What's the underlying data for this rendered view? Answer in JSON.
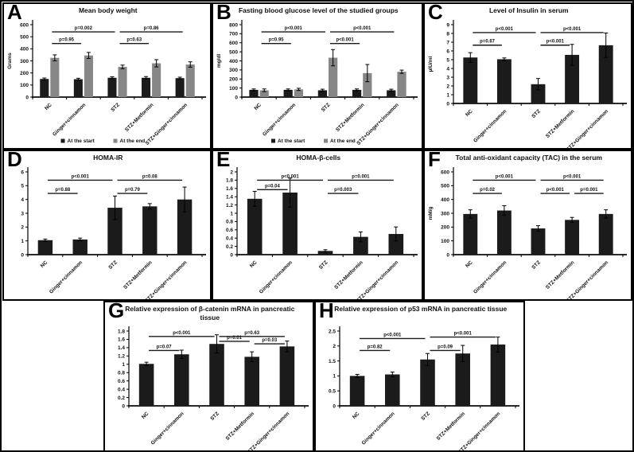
{
  "figure": {
    "background": "#ffffff",
    "border_color": "#000000",
    "bar_color": "#1b1b1b",
    "secondary_bar_color": "#878787",
    "legend": {
      "items": [
        {
          "label": "At the start",
          "color": "#1b1b1b"
        },
        {
          "label": "At the end",
          "color": "#878787"
        }
      ]
    }
  },
  "chart_data": [
    {
      "panel_letter": "A",
      "type": "bar",
      "title": "Mean body weight",
      "ylabel": "Grams",
      "ylim": [
        0,
        600
      ],
      "yticks": [
        0,
        100,
        200,
        300,
        400,
        500,
        600
      ],
      "grid": false,
      "legend": true,
      "legend_position": "bottom",
      "categories": [
        "NC",
        "Ginger+cinnamon",
        "STZ",
        "STZ+Metformin",
        "STZ+Ginger+cinnamon"
      ],
      "series": [
        {
          "name": "At the start",
          "color": "#1b1b1b",
          "values": [
            150,
            148,
            160,
            160,
            157
          ],
          "errors": [
            8,
            8,
            8,
            10,
            8
          ]
        },
        {
          "name": "At the end",
          "color": "#878787",
          "values": [
            325,
            345,
            250,
            280,
            270
          ],
          "errors": [
            25,
            25,
            15,
            30,
            22
          ]
        }
      ],
      "pvalues": [
        {
          "label": "p=0.002",
          "from": 0,
          "to": 2,
          "level": 1
        },
        {
          "label": "p=0.86",
          "from": 2,
          "to": 4,
          "level": 1
        },
        {
          "label": "p=0.95",
          "from": 0,
          "to": 1,
          "level": 2
        },
        {
          "label": "p=0.63",
          "from": 2,
          "to": 3,
          "level": 2
        }
      ]
    },
    {
      "panel_letter": "B",
      "type": "bar",
      "title": "Fasting blood glucose level of the studied groups",
      "ylabel": "mg/dl",
      "ylim": [
        0,
        800
      ],
      "yticks": [
        0,
        100,
        200,
        300,
        400,
        500,
        600,
        700,
        800
      ],
      "grid": false,
      "legend": true,
      "legend_position": "bottom",
      "categories": [
        "NC",
        "Ginger+cinnamon",
        "STZ",
        "STZ+Metformin",
        "STZ+Ginger+cinnamon"
      ],
      "series": [
        {
          "name": "At the start",
          "color": "#1b1b1b",
          "values": [
            80,
            80,
            75,
            80,
            75
          ],
          "errors": [
            10,
            10,
            12,
            10,
            12
          ]
        },
        {
          "name": "At the end",
          "color": "#878787",
          "values": [
            75,
            85,
            435,
            265,
            280
          ],
          "errors": [
            15,
            12,
            90,
            95,
            18
          ]
        }
      ],
      "pvalues": [
        {
          "label": "p<0.001",
          "from": 0,
          "to": 2,
          "level": 1
        },
        {
          "label": "p<0.001",
          "from": 2,
          "to": 4,
          "level": 1
        },
        {
          "label": "p=0.95",
          "from": 0,
          "to": 1,
          "level": 2
        },
        {
          "label": "p<0.001",
          "from": 2,
          "to": 3,
          "level": 2
        }
      ]
    },
    {
      "panel_letter": "C",
      "type": "bar",
      "title": "Level of Insulin in serum",
      "ylabel": "µIU/ml",
      "ylim": [
        0,
        9
      ],
      "yticks": [
        0,
        1,
        2,
        3,
        4,
        5,
        6,
        7,
        8,
        9
      ],
      "grid": false,
      "legend": false,
      "categories": [
        "NC",
        "Ginger+cinnamon",
        "STZ",
        "STZ+Metformin",
        "STZ+Ginger+cinnamon"
      ],
      "series": [
        {
          "name": "Insulin",
          "color": "#1b1b1b",
          "values": [
            5.25,
            5.05,
            2.2,
            5.55,
            6.65
          ],
          "errors": [
            0.55,
            0.15,
            0.65,
            1.2,
            1.4
          ]
        }
      ],
      "pvalues": [
        {
          "label": "p<0.001",
          "from": 0,
          "to": 2,
          "level": 1
        },
        {
          "label": "p<0.001",
          "from": 2,
          "to": 4,
          "level": 1
        },
        {
          "label": "p=0.67",
          "from": 0,
          "to": 1,
          "level": 2
        },
        {
          "label": "p<0.001",
          "from": 2,
          "to": 3,
          "level": 2
        }
      ]
    },
    {
      "panel_letter": "D",
      "type": "bar",
      "title": "HOMA-IR",
      "ylabel": "",
      "ylim": [
        0,
        6
      ],
      "yticks": [
        0,
        1,
        2,
        3,
        4,
        5,
        6
      ],
      "grid": false,
      "legend": false,
      "categories": [
        "NC",
        "Ginger+cinnamon",
        "STZ",
        "STZ+Metformin",
        "STZ+Ginger+cinnamon"
      ],
      "series": [
        {
          "name": "HOMA-IR",
          "color": "#1b1b1b",
          "values": [
            1.05,
            1.1,
            3.4,
            3.5,
            4.0
          ],
          "errors": [
            0.08,
            0.1,
            0.85,
            0.2,
            0.9
          ]
        }
      ],
      "pvalues": [
        {
          "label": "p<0.001",
          "from": 0,
          "to": 2,
          "level": 1
        },
        {
          "label": "p=0.08",
          "from": 2,
          "to": 4,
          "level": 1
        },
        {
          "label": "p=0.88",
          "from": 0,
          "to": 1,
          "level": 2
        },
        {
          "label": "p=0.79",
          "from": 2,
          "to": 3,
          "level": 2
        }
      ]
    },
    {
      "panel_letter": "E",
      "type": "bar",
      "title": "HOMA-β-cells",
      "ylabel": "",
      "ylim": [
        0,
        2
      ],
      "yticks": [
        0,
        0.2,
        0.4,
        0.6,
        0.8,
        1,
        1.2,
        1.4,
        1.6,
        1.8,
        2
      ],
      "grid": false,
      "legend": false,
      "categories": [
        "NC",
        "Ginger+cinnamon",
        "STZ",
        "STZ+Metformin",
        "STZ+Ginger+cinnamon"
      ],
      "series": [
        {
          "name": "HOMA-β-cells",
          "color": "#1b1b1b",
          "values": [
            1.35,
            1.5,
            0.09,
            0.43,
            0.5
          ],
          "errors": [
            0.18,
            0.35,
            0.03,
            0.12,
            0.17
          ]
        }
      ],
      "pvalues": [
        {
          "label": "p<0.001",
          "from": 0,
          "to": 2,
          "level": 1
        },
        {
          "label": "p=0.001",
          "from": 2,
          "to": 4,
          "level": 1
        },
        {
          "label": "p=0.04",
          "from": 0,
          "to": 1,
          "level": 2
        },
        {
          "label": "p=0.003",
          "from": 2,
          "to": 3,
          "level": 2
        }
      ]
    },
    {
      "panel_letter": "F",
      "type": "bar",
      "title": "Total anti-oxidant capacity (TAC) in the serum",
      "ylabel": "mM/g",
      "ylim": [
        0,
        600
      ],
      "yticks": [
        0,
        100,
        200,
        300,
        400,
        500,
        600
      ],
      "grid": false,
      "legend": false,
      "categories": [
        "NC",
        "Ginger+cinnamon",
        "STZ",
        "STZ+Metformin",
        "STZ+Ginger+cinnamon"
      ],
      "series": [
        {
          "name": "TAC",
          "color": "#1b1b1b",
          "values": [
            295,
            320,
            190,
            252,
            295
          ],
          "errors": [
            30,
            35,
            20,
            18,
            30
          ]
        }
      ],
      "pvalues": [
        {
          "label": "p<0.001",
          "from": 0,
          "to": 2,
          "level": 1
        },
        {
          "label": "p<0.001",
          "from": 2,
          "to": 4,
          "level": 1
        },
        {
          "label": "p=0.02",
          "from": 0,
          "to": 1,
          "level": 2
        },
        {
          "label": "p<0.001",
          "from": 2,
          "to": 3,
          "level": 2
        },
        {
          "label": "p=0.001",
          "from": 3,
          "to": 4,
          "level": 2
        }
      ]
    },
    {
      "panel_letter": "G",
      "type": "bar",
      "title": "Relative expression of β-catenin mRNA in pancreatic tissue",
      "ylabel": "",
      "ylim": [
        0,
        1.8
      ],
      "yticks": [
        0,
        0.2,
        0.4,
        0.6,
        0.8,
        1,
        1.2,
        1.4,
        1.6,
        1.8
      ],
      "grid": false,
      "legend": false,
      "categories": [
        "NC",
        "Ginger+cinnamon",
        "STZ",
        "STZ+Metformin",
        "STZ+Ginger+cinnamon"
      ],
      "series": [
        {
          "name": "β-catenin mRNA",
          "color": "#1b1b1b",
          "values": [
            1.01,
            1.24,
            1.49,
            1.18,
            1.43
          ],
          "errors": [
            0.04,
            0.1,
            0.22,
            0.12,
            0.13
          ]
        }
      ],
      "pvalues": [
        {
          "label": "p<0.001",
          "from": 0,
          "to": 2,
          "level": 1
        },
        {
          "label": "p=0.63",
          "from": 2,
          "to": 4,
          "level": 1
        },
        {
          "label": "p=0.07",
          "from": 0,
          "to": 1,
          "level": 2
        },
        {
          "label": "p=0.01",
          "from": 2,
          "to": 3,
          "level": 2
        },
        {
          "label": "p=0.03",
          "from": 3,
          "to": 4,
          "level": 2
        }
      ]
    },
    {
      "panel_letter": "H",
      "type": "bar",
      "title": "Relative expression of p53 mRNA in pancreatic tissue",
      "ylabel": "",
      "ylim": [
        0,
        2.5
      ],
      "yticks": [
        0,
        0.5,
        1,
        1.5,
        2,
        2.5
      ],
      "grid": false,
      "legend": false,
      "categories": [
        "NC",
        "Ginger+cinnamon",
        "STZ",
        "STZ+Metformin",
        "STZ+Ginger+cinnamon"
      ],
      "series": [
        {
          "name": "p53 mRNA",
          "color": "#1b1b1b",
          "values": [
            1.0,
            1.05,
            1.55,
            1.75,
            2.05
          ],
          "errors": [
            0.05,
            0.08,
            0.2,
            0.27,
            0.25
          ]
        }
      ],
      "pvalues": [
        {
          "label": "p<0.001",
          "from": 0,
          "to": 2,
          "level": 1
        },
        {
          "label": "p<0.001",
          "from": 2,
          "to": 4,
          "level": 1
        },
        {
          "label": "p=0.82",
          "from": 0,
          "to": 1,
          "level": 2
        },
        {
          "label": "p=0.09",
          "from": 2,
          "to": 3,
          "level": 2
        }
      ]
    }
  ]
}
